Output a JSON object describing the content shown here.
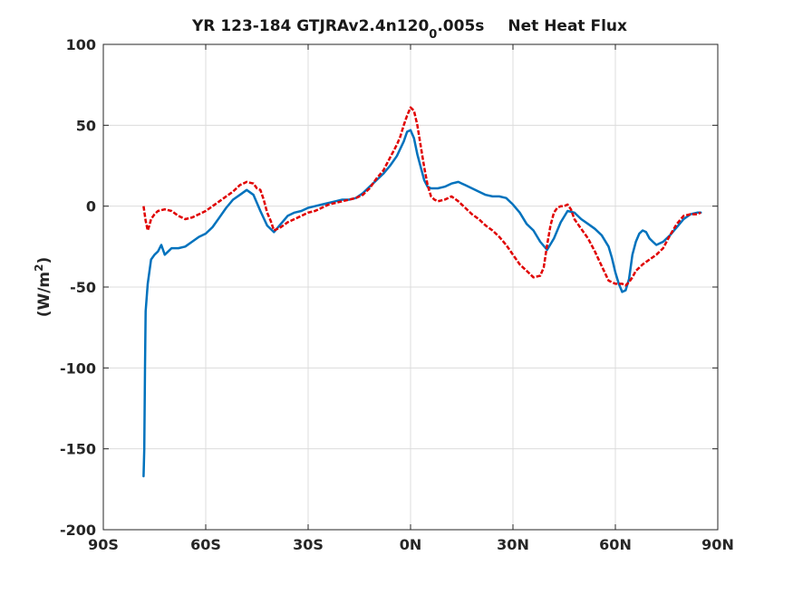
{
  "chart_data": {
    "type": "line",
    "title": {
      "part1": "YR 123-184 GTJRAv2.4n120",
      "subscript": "0",
      "part2": ".005s",
      "part3": "Net Heat Flux"
    },
    "ylabel": {
      "main": "(W/m",
      "superscript": "2",
      "close": ")"
    },
    "xlabel": "",
    "xlim": [
      -90,
      90
    ],
    "ylim": [
      -200,
      100
    ],
    "grid": true,
    "x_ticks": [
      {
        "value": -90,
        "label": "90S"
      },
      {
        "value": -60,
        "label": "60S"
      },
      {
        "value": -30,
        "label": "30S"
      },
      {
        "value": 0,
        "label": "0N"
      },
      {
        "value": 30,
        "label": "30N"
      },
      {
        "value": 60,
        "label": "60N"
      },
      {
        "value": 90,
        "label": "90N"
      }
    ],
    "y_ticks": [
      {
        "value": 100,
        "label": "100"
      },
      {
        "value": 50,
        "label": "50"
      },
      {
        "value": 0,
        "label": "0"
      },
      {
        "value": -50,
        "label": "-50"
      },
      {
        "value": -100,
        "label": "-100"
      },
      {
        "value": -150,
        "label": "-150"
      },
      {
        "value": -200,
        "label": "-200"
      }
    ],
    "series": [
      {
        "color": "#0072BD",
        "style": "solid",
        "x": [
          -78.2,
          -78.0,
          -77.8,
          -77.6,
          -77.0,
          -76.0,
          -75.0,
          -74.0,
          -73.0,
          -72.0,
          -71.0,
          -70.0,
          -68.0,
          -66.0,
          -64.0,
          -62.0,
          -60.0,
          -58.0,
          -56.0,
          -54.0,
          -52.0,
          -50.0,
          -48.0,
          -46.0,
          -44.0,
          -42.0,
          -40.0,
          -38.0,
          -36.0,
          -34.0,
          -32.0,
          -30.0,
          -28.0,
          -26.0,
          -24.0,
          -22.0,
          -20.0,
          -18.0,
          -16.0,
          -14.0,
          -12.0,
          -10.0,
          -8.0,
          -6.0,
          -4.0,
          -2.0,
          -1.0,
          0.0,
          1.0,
          2.0,
          3.0,
          4.0,
          5.0,
          6.0,
          8.0,
          10.0,
          12.0,
          14.0,
          16.0,
          18.0,
          20.0,
          22.0,
          24.0,
          26.0,
          28.0,
          30.0,
          32.0,
          34.0,
          36.0,
          38.0,
          40.0,
          42.0,
          44.0,
          46.0,
          48.0,
          50.0,
          52.0,
          54.0,
          56.0,
          58.0,
          59.0,
          60.0,
          61.0,
          62.0,
          63.0,
          64.0,
          65.0,
          66.0,
          67.0,
          68.0,
          69.0,
          70.0,
          71.0,
          72.0,
          74.0,
          76.0,
          78.0,
          80.0,
          82.0,
          84.0,
          85.0
        ],
        "y": [
          -167,
          -150,
          -100,
          -65,
          -48,
          -33,
          -30,
          -28,
          -24,
          -30,
          -28,
          -26,
          -26,
          -25,
          -22,
          -19,
          -17,
          -13,
          -7,
          -1,
          4,
          7,
          10,
          7,
          -3,
          -12,
          -16,
          -11,
          -6,
          -4,
          -3,
          -1,
          0,
          1,
          2,
          3,
          4,
          4,
          5,
          8,
          12,
          16,
          20,
          25,
          31,
          40,
          46,
          47,
          42,
          32,
          24,
          16,
          12,
          11,
          11,
          12,
          14,
          15,
          13,
          11,
          9,
          7,
          6,
          6,
          5,
          1,
          -4,
          -11,
          -15,
          -22,
          -27,
          -20,
          -10,
          -3,
          -4,
          -8,
          -11,
          -14,
          -18,
          -25,
          -32,
          -41,
          -48,
          -53,
          -52,
          -45,
          -30,
          -22,
          -17,
          -15,
          -16,
          -20,
          -22,
          -24,
          -22,
          -18,
          -13,
          -8,
          -5,
          -4,
          -4
        ]
      },
      {
        "color": "#E00000",
        "style": "dashed",
        "x": [
          -78.2,
          -77.6,
          -77.0,
          -76.5,
          -76.0,
          -75.0,
          -74.0,
          -72.0,
          -70.0,
          -68.0,
          -66.0,
          -64.0,
          -62.0,
          -60.0,
          -58.0,
          -56.0,
          -54.0,
          -52.0,
          -50.0,
          -48.0,
          -46.0,
          -45.0,
          -44.0,
          -43.0,
          -42.0,
          -41.0,
          -40.0,
          -38.0,
          -36.0,
          -34.0,
          -32.0,
          -30.0,
          -28.0,
          -26.0,
          -24.0,
          -22.0,
          -20.0,
          -18.0,
          -16.0,
          -14.0,
          -12.0,
          -10.0,
          -8.0,
          -6.0,
          -4.0,
          -3.0,
          -2.0,
          -1.0,
          0.0,
          1.0,
          2.0,
          3.0,
          4.0,
          5.0,
          6.0,
          7.0,
          8.0,
          10.0,
          12.0,
          14.0,
          16.0,
          18.0,
          20.0,
          22.0,
          24.0,
          26.0,
          28.0,
          30.0,
          32.0,
          34.0,
          36.0,
          38.0,
          39.0,
          40.0,
          41.0,
          42.0,
          43.0,
          44.0,
          45.0,
          46.0,
          47.0,
          48.0,
          50.0,
          52.0,
          54.0,
          56.0,
          58.0,
          60.0,
          61.0,
          62.0,
          63.0,
          64.0,
          65.0,
          66.0,
          67.0,
          68.0,
          70.0,
          72.0,
          74.0,
          76.0,
          78.0,
          80.0,
          82.0,
          84.0,
          85.0
        ],
        "y": [
          0,
          -9,
          -15,
          -12,
          -8,
          -5,
          -3,
          -2,
          -3,
          -6,
          -8,
          -7,
          -5,
          -3,
          0,
          3,
          6,
          9,
          13,
          15,
          14,
          11,
          10,
          4,
          -4,
          -9,
          -15,
          -13,
          -10,
          -8,
          -6,
          -4,
          -3,
          -1,
          1,
          2,
          3,
          4,
          5,
          7,
          11,
          17,
          22,
          30,
          38,
          43,
          50,
          56,
          61,
          59,
          50,
          37,
          24,
          13,
          6,
          4,
          3,
          4,
          6,
          3,
          -1,
          -5,
          -8,
          -12,
          -15,
          -19,
          -24,
          -30,
          -36,
          -40,
          -44,
          -43,
          -38,
          -24,
          -12,
          -4,
          -1,
          0,
          0,
          1,
          -2,
          -8,
          -14,
          -20,
          -28,
          -37,
          -46,
          -48,
          -48,
          -48,
          -49,
          -47,
          -44,
          -40,
          -38,
          -36,
          -33,
          -30,
          -26,
          -18,
          -11,
          -6,
          -5,
          -5,
          -4
        ]
      }
    ]
  }
}
